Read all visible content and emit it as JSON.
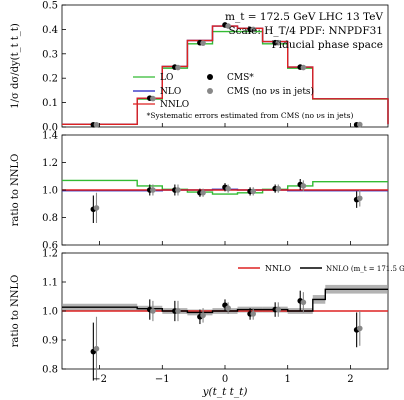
{
  "chart_data": [
    {
      "type": "line",
      "panel": "distribution",
      "ylabel": "1/σ dσ/dy(t_t t_t)",
      "ylim": [
        0,
        0.55
      ],
      "yticks": [
        "0.0",
        "0.1",
        "0.2",
        "0.3",
        "0.4",
        "0.5"
      ],
      "annotations": [
        "m_t = 172.5 GeV LHC 13 TeV",
        "Scale: H_T/4 PDF: NNPDF31",
        "Fiducial phase space",
        "*Systematic errors estimated from CMS (no νs in jets)"
      ],
      "legend_position": "center-left",
      "bin_edges": [
        -2.6,
        -1.4,
        -1.0,
        -0.6,
        -0.2,
        0.2,
        0.6,
        1.0,
        1.4,
        2.6
      ],
      "series": [
        {
          "name": "LO",
          "color": "#33bb33",
          "values": [
            0.012,
            0.126,
            0.265,
            0.375,
            0.43,
            0.43,
            0.375,
            0.265,
            0.126,
            0.012
          ]
        },
        {
          "name": "NLO",
          "color": "#1f1fbf",
          "values": [
            0.012,
            0.13,
            0.273,
            0.39,
            0.455,
            0.445,
            0.385,
            0.27,
            0.127,
            0.012
          ]
        },
        {
          "name": "NNLO",
          "color": "#dd2222",
          "values": [
            0.012,
            0.13,
            0.273,
            0.39,
            0.455,
            0.445,
            0.385,
            0.27,
            0.127,
            0.012
          ]
        }
      ],
      "points": [
        {
          "name": "CMS*",
          "color": "#000000",
          "x": [
            -2.1,
            -1.2,
            -0.8,
            -0.4,
            0.0,
            0.4,
            0.8,
            1.2,
            2.1
          ],
          "y": [
            0.01,
            0.13,
            0.27,
            0.38,
            0.46,
            0.44,
            0.38,
            0.27,
            0.01
          ]
        },
        {
          "name": "CMS (no νs in jets)",
          "color": "#888888",
          "x": [
            -2.05,
            -1.15,
            -0.75,
            -0.35,
            0.05,
            0.45,
            0.85,
            1.25,
            2.15
          ],
          "y": [
            0.01,
            0.128,
            0.268,
            0.378,
            0.455,
            0.44,
            0.38,
            0.268,
            0.011
          ]
        }
      ]
    },
    {
      "type": "line",
      "panel": "ratio-lo-nlo",
      "ylabel": "ratio to NNLO",
      "ylim": [
        0.6,
        1.4
      ],
      "yticks": [
        "0.6",
        "0.8",
        "1.0",
        "1.2",
        "1.4"
      ],
      "bin_edges": [
        -2.6,
        -1.4,
        -1.0,
        -0.6,
        -0.2,
        0.2,
        0.6,
        1.0,
        1.4,
        2.6
      ],
      "series": [
        {
          "name": "LO",
          "color": "#33bb33",
          "values": [
            1.07,
            1.03,
            1.005,
            0.985,
            0.97,
            0.98,
            1.005,
            1.03,
            1.06,
            1.06
          ]
        },
        {
          "name": "NLO",
          "color": "#1f1fbf",
          "values": [
            0.995,
            0.995,
            1.0,
            1.0,
            1.005,
            1.0,
            1.0,
            0.995,
            0.995,
            0.995
          ]
        },
        {
          "name": "NNLO",
          "color": "#dd2222",
          "values": [
            1.0,
            1.0,
            1.0,
            1.0,
            1.0,
            1.0,
            1.0,
            1.0,
            1.0,
            1.0
          ]
        }
      ],
      "points": [
        {
          "name": "CMS*",
          "color": "#000000",
          "x": [
            -2.1,
            -1.2,
            -0.8,
            -0.4,
            0.0,
            0.4,
            0.8,
            1.2,
            2.1
          ],
          "y": [
            0.86,
            1.0,
            1.0,
            0.98,
            1.02,
            0.99,
            1.01,
            1.04,
            0.93
          ],
          "err": [
            0.1,
            0.04,
            0.04,
            0.03,
            0.03,
            0.03,
            0.03,
            0.04,
            0.06
          ]
        },
        {
          "name": "CMS (no νs in jets)",
          "color": "#888888",
          "x": [
            -2.05,
            -1.15,
            -0.75,
            -0.35,
            0.05,
            0.45,
            0.85,
            1.25,
            2.15
          ],
          "y": [
            0.87,
            1.0,
            1.0,
            0.98,
            1.01,
            0.99,
            1.01,
            1.03,
            0.94
          ],
          "err": [
            0.11,
            0.04,
            0.04,
            0.03,
            0.03,
            0.03,
            0.03,
            0.04,
            0.06
          ]
        }
      ]
    },
    {
      "type": "line",
      "panel": "ratio-mass",
      "xlabel": "y(t_t t_t)",
      "ylabel": "ratio to NNLO",
      "ylim": [
        0.8,
        1.2
      ],
      "xlim": [
        -2.6,
        2.6
      ],
      "yticks": [
        "0.8",
        "0.9",
        "1.0",
        "1.1",
        "1.2"
      ],
      "xticks": [
        "−2",
        "−1",
        "0",
        "1",
        "2"
      ],
      "xtick_values": [
        -2,
        -1,
        0,
        1,
        2
      ],
      "legend_position": "top-right",
      "bin_edges": [
        -2.6,
        -1.4,
        -1.0,
        -0.6,
        -0.2,
        0.2,
        0.6,
        1.0,
        1.4,
        1.6,
        2.6
      ],
      "series": [
        {
          "name": "NNLO",
          "color": "#dd2222",
          "values": [
            1.0,
            1.0,
            1.0,
            1.0,
            1.0,
            1.0,
            1.0,
            1.0,
            1.0,
            1.0
          ]
        },
        {
          "name": "NNLO (m_t = 171.5 GeV)",
          "color": "#000000",
          "values": [
            1.013,
            1.008,
            1.0,
            0.995,
            1.0,
            1.005,
            1.005,
            1.0,
            1.04,
            1.075
          ],
          "band": [
            0.012,
            0.01,
            0.01,
            0.01,
            0.01,
            0.01,
            0.01,
            0.01,
            0.015,
            0.015
          ]
        }
      ],
      "points": [
        {
          "name": "CMS*",
          "color": "#000000",
          "x": [
            -2.1,
            -1.2,
            -0.8,
            -0.4,
            0.0,
            0.4,
            0.8,
            1.2,
            2.1
          ],
          "y": [
            0.86,
            1.005,
            1.0,
            0.98,
            1.02,
            0.99,
            1.005,
            1.035,
            0.935
          ],
          "err": [
            0.1,
            0.035,
            0.035,
            0.025,
            0.02,
            0.02,
            0.025,
            0.035,
            0.06
          ]
        },
        {
          "name": "CMS (no νs in jets)",
          "color": "#888888",
          "x": [
            -2.05,
            -1.15,
            -0.75,
            -0.35,
            0.05,
            0.45,
            0.85,
            1.25,
            2.15
          ],
          "y": [
            0.87,
            1.0,
            1.0,
            0.985,
            1.01,
            0.99,
            1.005,
            1.03,
            0.94
          ],
          "err": [
            0.11,
            0.035,
            0.035,
            0.025,
            0.02,
            0.02,
            0.025,
            0.035,
            0.06
          ]
        }
      ]
    }
  ],
  "legend_top": {
    "items": [
      "LO",
      "NLO",
      "NNLO",
      "CMS*",
      "CMS (no νs in jets)"
    ]
  },
  "legend_bottom": {
    "items": [
      "NNLO",
      "NNLO (m_t = 171.5 GeV)"
    ]
  }
}
